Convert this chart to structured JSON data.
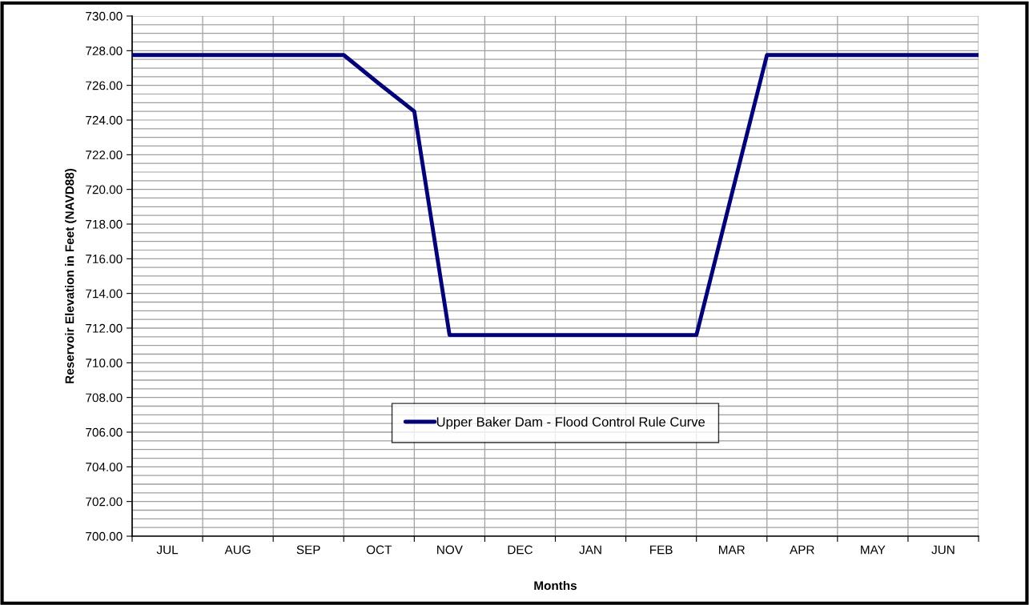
{
  "chart_data": {
    "type": "line",
    "xlabel": "Months",
    "ylabel": "Reservoir Elevation in Feet (NAVD88)",
    "categories": [
      null,
      "JUL",
      null,
      "AUG",
      null,
      "SEP",
      null,
      "OCT",
      null,
      "NOV",
      null,
      "DEC",
      null,
      "JAN",
      null,
      "FEB",
      null,
      "MAR",
      null,
      "APR",
      null,
      "MAY",
      null,
      "JUN",
      null
    ],
    "series": [
      {
        "name": "Upper Baker Dam - Flood Control Rule Curve",
        "color": "#000080",
        "values": [
          727.75,
          727.75,
          727.75,
          727.75,
          727.75,
          727.75,
          727.75,
          726.1,
          724.5,
          711.6,
          711.6,
          711.6,
          711.6,
          711.6,
          711.6,
          711.6,
          711.6,
          719.7,
          727.75,
          727.75,
          727.75,
          727.75,
          727.75,
          727.75,
          727.75
        ]
      }
    ],
    "ylim": [
      700,
      730
    ],
    "yticks": [
      {
        "value": 700,
        "label": "700.00"
      },
      {
        "value": 700.5,
        "label": null
      },
      {
        "value": 701,
        "label": null
      },
      {
        "value": 701.5,
        "label": null
      },
      {
        "value": 702,
        "label": "702.00"
      },
      {
        "value": 702.5,
        "label": null
      },
      {
        "value": 703,
        "label": null
      },
      {
        "value": 703.5,
        "label": null
      },
      {
        "value": 704,
        "label": "704.00"
      },
      {
        "value": 704.5,
        "label": null
      },
      {
        "value": 705,
        "label": null
      },
      {
        "value": 705.5,
        "label": null
      },
      {
        "value": 706,
        "label": "706.00"
      },
      {
        "value": 706.5,
        "label": null
      },
      {
        "value": 707,
        "label": null
      },
      {
        "value": 707.5,
        "label": null
      },
      {
        "value": 708,
        "label": "708.00"
      },
      {
        "value": 708.5,
        "label": null
      },
      {
        "value": 709,
        "label": null
      },
      {
        "value": 709.5,
        "label": null
      },
      {
        "value": 710,
        "label": "710.00"
      },
      {
        "value": 710.5,
        "label": null
      },
      {
        "value": 711,
        "label": null
      },
      {
        "value": 711.5,
        "label": null
      },
      {
        "value": 712,
        "label": "712.00"
      },
      {
        "value": 712.5,
        "label": null
      },
      {
        "value": 713,
        "label": null
      },
      {
        "value": 713.5,
        "label": null
      },
      {
        "value": 714,
        "label": "714.00"
      },
      {
        "value": 714.5,
        "label": null
      },
      {
        "value": 715,
        "label": null
      },
      {
        "value": 715.5,
        "label": null
      },
      {
        "value": 716,
        "label": "716.00"
      },
      {
        "value": 716.5,
        "label": null
      },
      {
        "value": 717,
        "label": null
      },
      {
        "value": 717.5,
        "label": null
      },
      {
        "value": 718,
        "label": "718.00"
      },
      {
        "value": 718.5,
        "label": null
      },
      {
        "value": 719,
        "label": null
      },
      {
        "value": 719.5,
        "label": null
      },
      {
        "value": 720,
        "label": "720.00"
      },
      {
        "value": 720.5,
        "label": null
      },
      {
        "value": 721,
        "label": null
      },
      {
        "value": 721.5,
        "label": null
      },
      {
        "value": 722,
        "label": "722.00"
      },
      {
        "value": 722.5,
        "label": null
      },
      {
        "value": 723,
        "label": null
      },
      {
        "value": 723.5,
        "label": null
      },
      {
        "value": 724,
        "label": "724.00"
      },
      {
        "value": 724.5,
        "label": null
      },
      {
        "value": 725,
        "label": null
      },
      {
        "value": 725.5,
        "label": null
      },
      {
        "value": 726,
        "label": "726.00"
      },
      {
        "value": 726.5,
        "label": null
      },
      {
        "value": 727,
        "label": null
      },
      {
        "value": 727.5,
        "label": null
      },
      {
        "value": 728,
        "label": "728.00"
      },
      {
        "value": 728.5,
        "label": null
      },
      {
        "value": 729,
        "label": null
      },
      {
        "value": 729.5,
        "label": null
      },
      {
        "value": 730,
        "label": "730.00"
      }
    ],
    "grid": true,
    "legend": "bottom",
    "marker": "none",
    "line_style": "solid"
  }
}
